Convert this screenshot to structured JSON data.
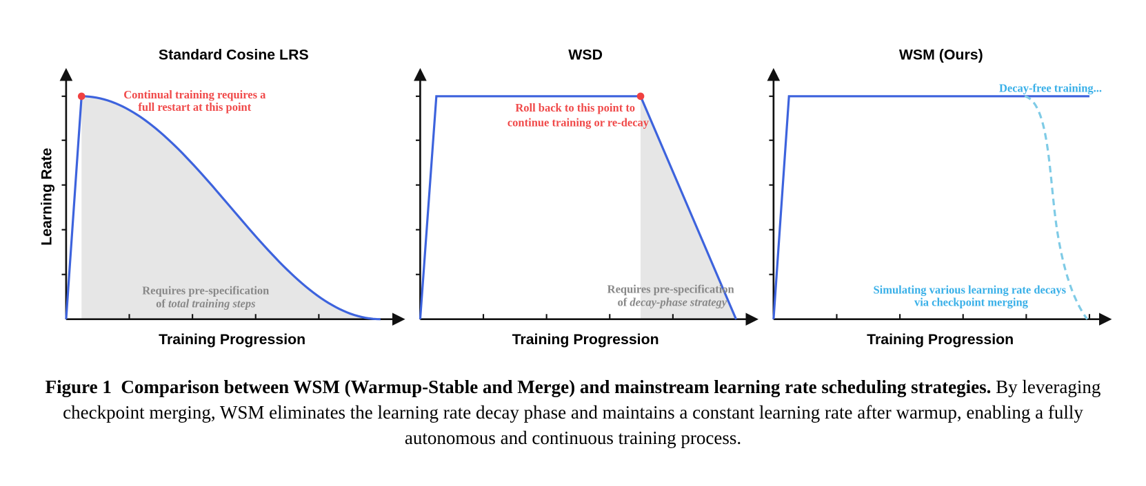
{
  "figure": {
    "panels": [
      {
        "title": "Standard Cosine LRS",
        "y_label": "Learning Rate",
        "x_label": "Training Progression",
        "note": [
          "Continual training requires a",
          "full restart at this point"
        ],
        "requirement": {
          "line1": "Requires pre-specification",
          "prefix": "of",
          "italic": "total training steps"
        }
      },
      {
        "title": "WSD",
        "x_label": "Training Progression",
        "note": [
          "Roll back to this point to",
          "continue training or re-decay"
        ],
        "requirement": {
          "line1": "Requires pre-specification",
          "prefix": "of",
          "italic": "decay-phase strategy"
        }
      },
      {
        "title": "WSM (Ours)",
        "x_label": "Training Progression",
        "note": [
          "Decay-free training..."
        ],
        "merge_note": [
          "Simulating various learning rate decays",
          "via checkpoint merging"
        ]
      }
    ],
    "caption": {
      "label": "Figure 1",
      "heading": "Comparison between WSM (Warmup-Stable and Merge) and mainstream learning rate scheduling strategies.",
      "body": "By leveraging checkpoint merging, WSM eliminates the learning rate decay phase and maintains a constant learning rate after warmup, enabling a fully autonomous and continuous training process."
    }
  }
}
